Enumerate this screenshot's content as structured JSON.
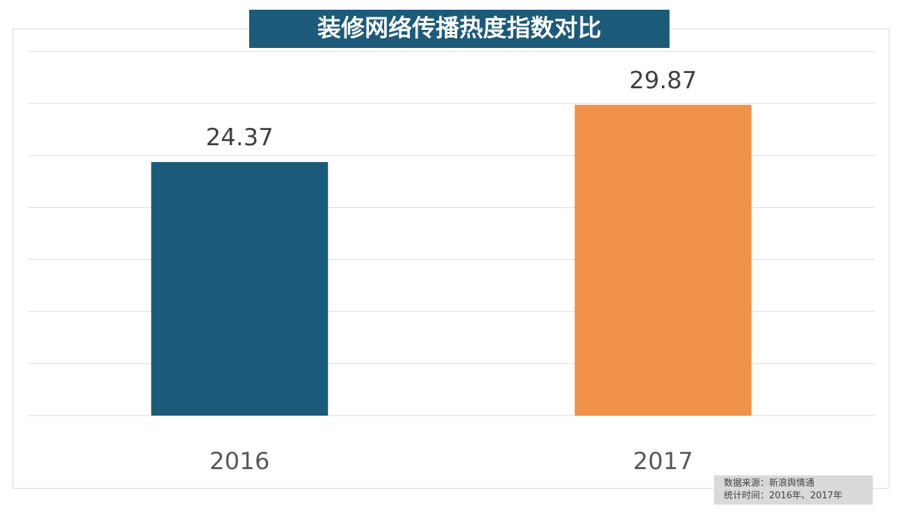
{
  "title": "装修网络传播热度指数对比",
  "colors": {
    "title_bg": "#1c5a7a",
    "grid": "#d9d9d9"
  },
  "chart_data": {
    "type": "bar",
    "title": "装修网络传播热度指数对比",
    "categories": [
      "2016",
      "2017"
    ],
    "values": [
      24.37,
      29.87
    ],
    "value_labels": [
      "24.37",
      "29.87"
    ],
    "bar_colors": [
      "#1c5a7a",
      "#f0924a"
    ],
    "ylim": [
      0,
      35
    ],
    "ytick_step": 5,
    "grid": true,
    "xlabel": "",
    "ylabel": ""
  },
  "note": {
    "line1": "数据来源：新浪舆情通",
    "line2": "统计时间：2016年、2017年"
  }
}
